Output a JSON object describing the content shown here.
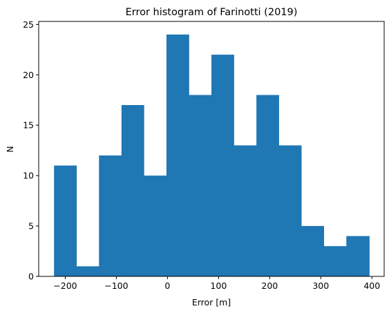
{
  "chart_data": {
    "type": "bar",
    "title": "Error histogram of Farinotti (2019)",
    "xlabel": "Error [m]",
    "ylabel": "N",
    "bin_edges": [
      -222,
      -178,
      -134,
      -90,
      -46,
      -2,
      42,
      86,
      130,
      174,
      218,
      262,
      306,
      350,
      395
    ],
    "values": [
      11,
      1,
      12,
      17,
      10,
      24,
      18,
      22,
      13,
      18,
      13,
      5,
      3,
      4
    ],
    "xlim": [
      -252,
      424
    ],
    "ylim": [
      0,
      25.3
    ],
    "xticks": [
      -200,
      -100,
      0,
      100,
      200,
      300,
      400
    ],
    "xtick_labels": [
      "−200",
      "−100",
      "0",
      "100",
      "200",
      "300",
      "400"
    ],
    "yticks": [
      0,
      5,
      10,
      15,
      20,
      25
    ],
    "ytick_labels": [
      "0",
      "5",
      "10",
      "15",
      "20",
      "25"
    ],
    "bar_color": "#1f77b4",
    "grid": false,
    "legend": "none"
  }
}
